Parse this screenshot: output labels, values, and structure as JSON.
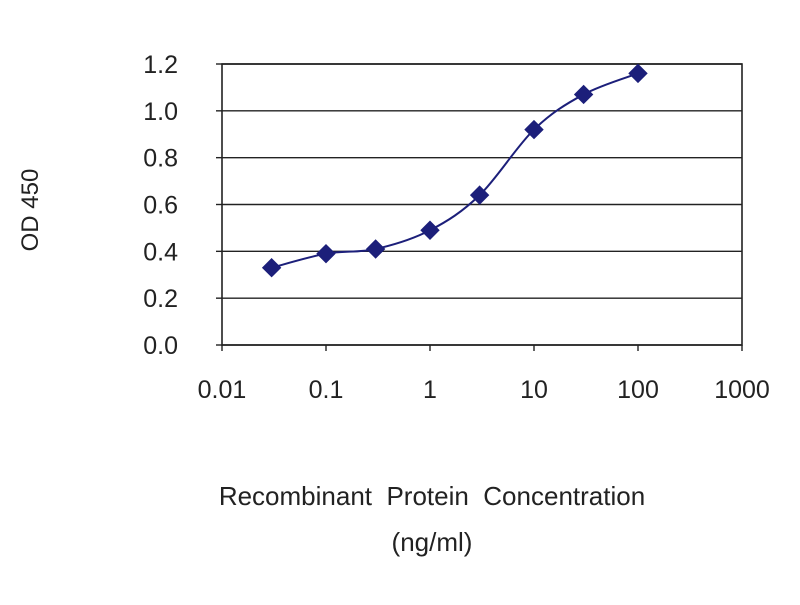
{
  "chart_data": {
    "type": "line",
    "title": "",
    "ylabel": "OD 450",
    "xlabel_line1": "Recombinant  Protein  Concentration",
    "xlabel_line2": "(ng/ml)",
    "x_scale": "log",
    "xlim": [
      0.01,
      1000
    ],
    "ylim": [
      0.0,
      1.2
    ],
    "x_ticks": [
      0.01,
      0.1,
      1,
      10,
      100,
      1000
    ],
    "x_tick_labels": [
      "0.01",
      "0.1",
      "1",
      "10",
      "100",
      "1000"
    ],
    "y_ticks": [
      0.0,
      0.2,
      0.4,
      0.6,
      0.8,
      1.0,
      1.2
    ],
    "y_tick_labels": [
      "0.0",
      "0.2",
      "0.4",
      "0.6",
      "0.8",
      "1.0",
      "1.2"
    ],
    "grid": "horizontal",
    "legend": "none",
    "series": [
      {
        "x": [
          0.03,
          0.1,
          0.3,
          1,
          3,
          10,
          30,
          100
        ],
        "y": [
          0.33,
          0.39,
          0.41,
          0.49,
          0.64,
          0.92,
          1.07,
          1.16
        ],
        "marker": "diamond",
        "color": "#1c1f7a"
      }
    ],
    "colors": {
      "series": "#1c1f7a",
      "axis": "#222222",
      "grid": "#222222"
    }
  }
}
